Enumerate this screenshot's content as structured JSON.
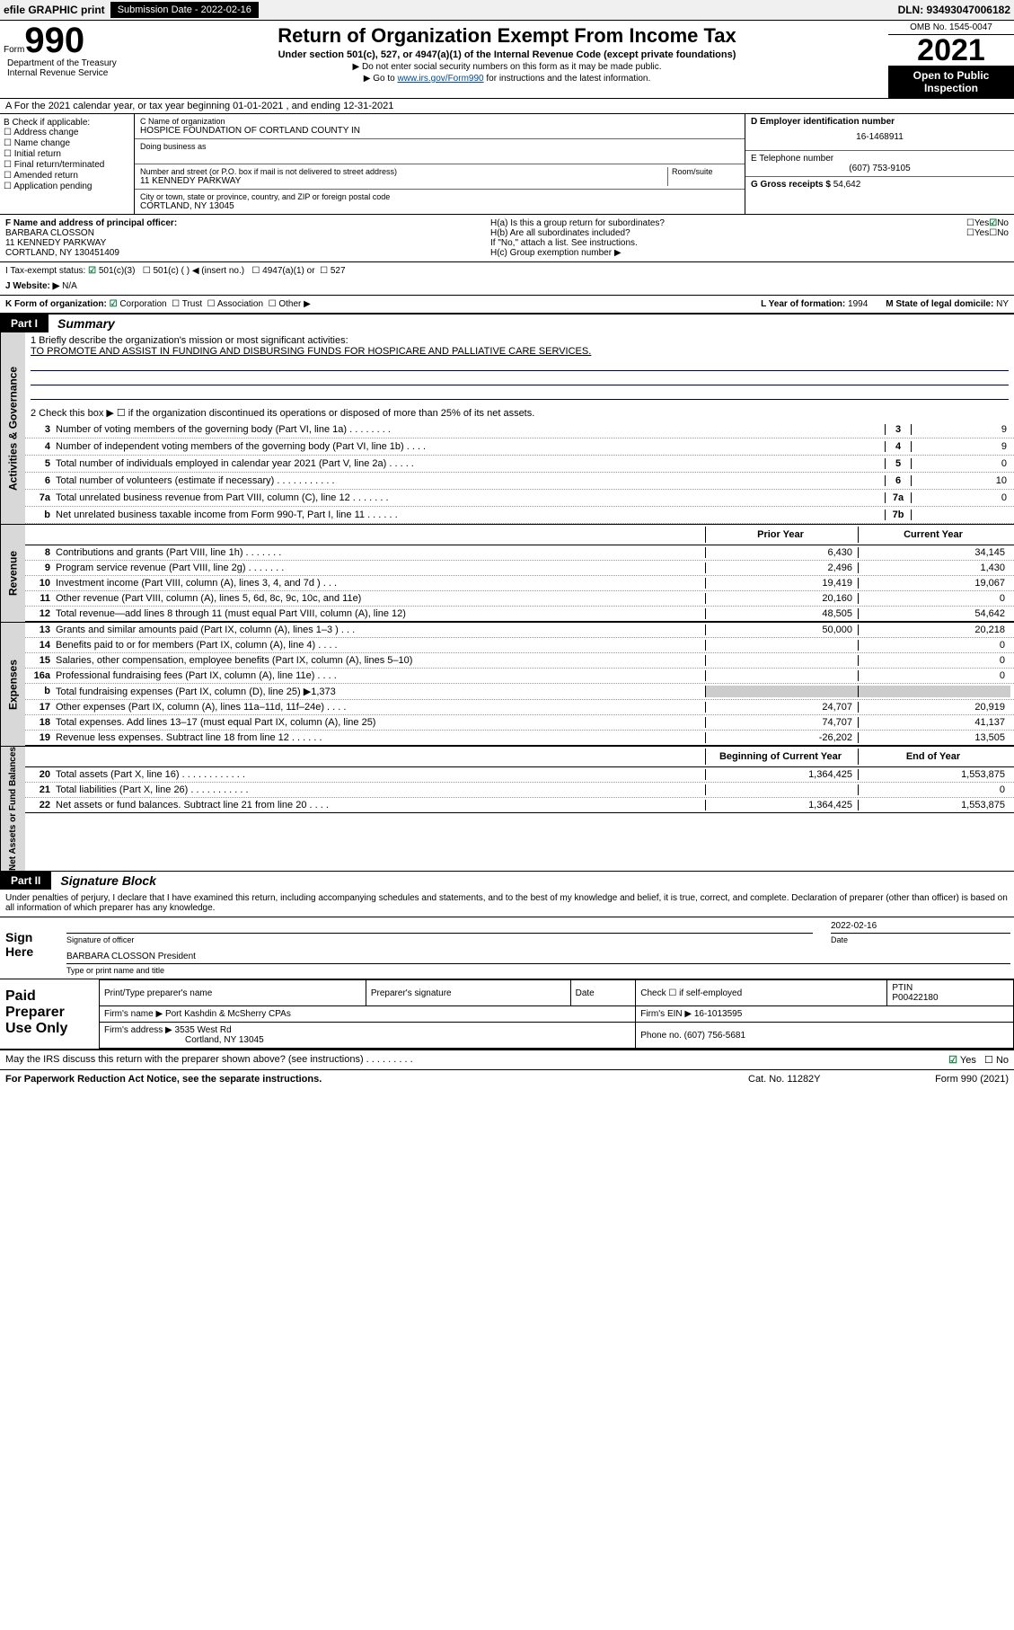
{
  "topbar": {
    "efile": "efile GRAPHIC print",
    "subdate_label": "Submission Date - 2022-02-16",
    "dln": "DLN: 93493047006182"
  },
  "header": {
    "form_word": "Form",
    "form_num": "990",
    "title": "Return of Organization Exempt From Income Tax",
    "subtitle": "Under section 501(c), 527, or 4947(a)(1) of the Internal Revenue Code (except private foundations)",
    "note1": "▶ Do not enter social security numbers on this form as it may be made public.",
    "note2_pre": "▶ Go to ",
    "note2_link": "www.irs.gov/Form990",
    "note2_post": " for instructions and the latest information.",
    "omb": "OMB No. 1545-0047",
    "year": "2021",
    "open": "Open to Public Inspection",
    "dept": "Department of the Treasury\nInternal Revenue Service"
  },
  "section_a": "A For the 2021 calendar year, or tax year beginning 01-01-2021   , and ending 12-31-2021",
  "section_b": {
    "title": "B Check if applicable:",
    "items": [
      "Address change",
      "Name change",
      "Initial return",
      "Final return/terminated",
      "Amended return",
      "Application pending"
    ]
  },
  "section_c": {
    "name_label": "C Name of organization",
    "name": "HOSPICE FOUNDATION OF CORTLAND COUNTY IN",
    "dba_label": "Doing business as",
    "addr_label": "Number and street (or P.O. box if mail is not delivered to street address)",
    "room_label": "Room/suite",
    "addr": "11 KENNEDY PARKWAY",
    "city_label": "City or town, state or province, country, and ZIP or foreign postal code",
    "city": "CORTLAND, NY  13045"
  },
  "section_d": {
    "label": "D Employer identification number",
    "val": "16-1468911"
  },
  "section_e": {
    "label": "E Telephone number",
    "val": "(607) 753-9105"
  },
  "section_g": {
    "label": "G Gross receipts $",
    "val": "54,642"
  },
  "section_f": {
    "label": "F  Name and address of principal officer:",
    "name": "BARBARA CLOSSON",
    "addr1": "11 KENNEDY PARKWAY",
    "addr2": "CORTLAND, NY  130451409"
  },
  "section_h": {
    "ha": "H(a)  Is this a group return for subordinates?",
    "ha_no": "No",
    "hb": "H(b)  Are all subordinates included?",
    "hb_note": "If \"No,\" attach a list. See instructions.",
    "hc": "H(c)  Group exemption number ▶"
  },
  "section_i": {
    "label": "I   Tax-exempt status:",
    "opt1": "501(c)(3)",
    "opt2": "501(c) (  ) ◀ (insert no.)",
    "opt3": "4947(a)(1) or",
    "opt4": "527"
  },
  "section_j": {
    "label": "J   Website: ▶",
    "val": "N/A"
  },
  "section_k": {
    "label": "K Form of organization:",
    "opts": [
      "Corporation",
      "Trust",
      "Association",
      "Other ▶"
    ],
    "l_label": "L Year of formation:",
    "l_val": "1994",
    "m_label": "M State of legal domicile:",
    "m_val": "NY"
  },
  "part1": {
    "label": "Part I",
    "title": "Summary"
  },
  "activities": {
    "side": "Activities & Governance",
    "l1_label": "1   Briefly describe the organization's mission or most significant activities:",
    "l1_text": "TO PROMOTE AND ASSIST IN FUNDING AND DISBURSING FUNDS FOR HOSPICARE AND PALLIATIVE CARE SERVICES.",
    "l2": "2   Check this box ▶ ☐  if the organization discontinued its operations or disposed of more than 25% of its net assets.",
    "rows": [
      {
        "n": "3",
        "t": "Number of voting members of the governing body (Part VI, line 1a)  .    .    .    .    .    .    .    .",
        "box": "3",
        "v": "9"
      },
      {
        "n": "4",
        "t": "Number of independent voting members of the governing body (Part VI, line 1b)  .    .    .    .",
        "box": "4",
        "v": "9"
      },
      {
        "n": "5",
        "t": "Total number of individuals employed in calendar year 2021 (Part V, line 2a)  .    .    .    .    .",
        "box": "5",
        "v": "0"
      },
      {
        "n": "6",
        "t": "Total number of volunteers (estimate if necessary)  .    .    .    .    .    .    .    .    .    .    .",
        "box": "6",
        "v": "10"
      },
      {
        "n": "7a",
        "t": "Total unrelated business revenue from Part VIII, column (C), line 12  .    .    .    .    .    .    .",
        "box": "7a",
        "v": "0"
      },
      {
        "n": "b",
        "t": "Net unrelated business taxable income from Form 990-T, Part I, line 11  .    .    .    .    .    .",
        "box": "7b",
        "v": ""
      }
    ]
  },
  "revenue": {
    "side": "Revenue",
    "header_prior": "Prior Year",
    "header_current": "Current Year",
    "rows": [
      {
        "n": "8",
        "t": "Contributions and grants (Part VIII, line 1h)  .    .    .    .    .    .    .",
        "p": "6,430",
        "c": "34,145"
      },
      {
        "n": "9",
        "t": "Program service revenue (Part VIII, line 2g)  .    .    .    .    .    .    .",
        "p": "2,496",
        "c": "1,430"
      },
      {
        "n": "10",
        "t": "Investment income (Part VIII, column (A), lines 3, 4, and 7d )  .    .    .",
        "p": "19,419",
        "c": "19,067"
      },
      {
        "n": "11",
        "t": "Other revenue (Part VIII, column (A), lines 5, 6d, 8c, 9c, 10c, and 11e)",
        "p": "20,160",
        "c": "0"
      },
      {
        "n": "12",
        "t": "Total revenue—add lines 8 through 11 (must equal Part VIII, column (A), line 12)",
        "p": "48,505",
        "c": "54,642"
      }
    ]
  },
  "expenses": {
    "side": "Expenses",
    "rows": [
      {
        "n": "13",
        "t": "Grants and similar amounts paid (Part IX, column (A), lines 1–3 )  .    .    .",
        "p": "50,000",
        "c": "20,218"
      },
      {
        "n": "14",
        "t": "Benefits paid to or for members (Part IX, column (A), line 4)  .    .    .    .",
        "p": "",
        "c": "0"
      },
      {
        "n": "15",
        "t": "Salaries, other compensation, employee benefits (Part IX, column (A), lines 5–10)",
        "p": "",
        "c": "0"
      },
      {
        "n": "16a",
        "t": "Professional fundraising fees (Part IX, column (A), line 11e)  .    .    .    .",
        "p": "",
        "c": "0"
      },
      {
        "n": "b",
        "t": "Total fundraising expenses (Part IX, column (D), line 25) ▶1,373",
        "p": "SHADED",
        "c": "SHADED"
      },
      {
        "n": "17",
        "t": "Other expenses (Part IX, column (A), lines 11a–11d, 11f–24e)  .    .    .    .",
        "p": "24,707",
        "c": "20,919"
      },
      {
        "n": "18",
        "t": "Total expenses. Add lines 13–17 (must equal Part IX, column (A), line 25)",
        "p": "74,707",
        "c": "41,137"
      },
      {
        "n": "19",
        "t": "Revenue less expenses. Subtract line 18 from line 12  .    .    .    .    .    .",
        "p": "-26,202",
        "c": "13,505"
      }
    ]
  },
  "netassets": {
    "side": "Net Assets or Fund Balances",
    "header_begin": "Beginning of Current Year",
    "header_end": "End of Year",
    "rows": [
      {
        "n": "20",
        "t": "Total assets (Part X, line 16)  .    .    .    .    .    .    .    .    .    .    .    .",
        "p": "1,364,425",
        "c": "1,553,875"
      },
      {
        "n": "21",
        "t": "Total liabilities (Part X, line 26)  .    .    .    .    .    .    .    .    .    .    .",
        "p": "",
        "c": "0"
      },
      {
        "n": "22",
        "t": "Net assets or fund balances. Subtract line 21 from line 20  .    .    .    .",
        "p": "1,364,425",
        "c": "1,553,875"
      }
    ]
  },
  "part2": {
    "label": "Part II",
    "title": "Signature Block"
  },
  "sig": {
    "penalties": "Under penalties of perjury, I declare that I have examined this return, including accompanying schedules and statements, and to the best of my knowledge and belief, it is true, correct, and complete. Declaration of preparer (other than officer) is based on all information of which preparer has any knowledge.",
    "sign_here": "Sign Here",
    "sig_officer": "Signature of officer",
    "date": "2022-02-16",
    "date_label": "Date",
    "name": "BARBARA CLOSSON  President",
    "name_label": "Type or print name and title"
  },
  "preparer": {
    "label": "Paid Preparer Use Only",
    "h1": "Print/Type preparer's name",
    "h2": "Preparer's signature",
    "h3": "Date",
    "check_label": "Check ☐ if self-employed",
    "ptin_label": "PTIN",
    "ptin": "P00422180",
    "firm_name_label": "Firm's name   ▶",
    "firm_name": "Port Kashdin & McSherry CPAs",
    "firm_ein_label": "Firm's EIN ▶",
    "firm_ein": "16-1013595",
    "firm_addr_label": "Firm's address ▶",
    "firm_addr1": "3535 West Rd",
    "firm_addr2": "Cortland, NY  13045",
    "phone_label": "Phone no.",
    "phone": "(607) 756-5681"
  },
  "may_irs": "May the IRS discuss this return with the preparer shown above? (see instructions)  .    .    .    .    .    .    .    .    .",
  "footer": {
    "left": "For Paperwork Reduction Act Notice, see the separate instructions.",
    "mid": "Cat. No. 11282Y",
    "right": "Form 990 (2021)"
  },
  "yes": "Yes",
  "no": "No"
}
